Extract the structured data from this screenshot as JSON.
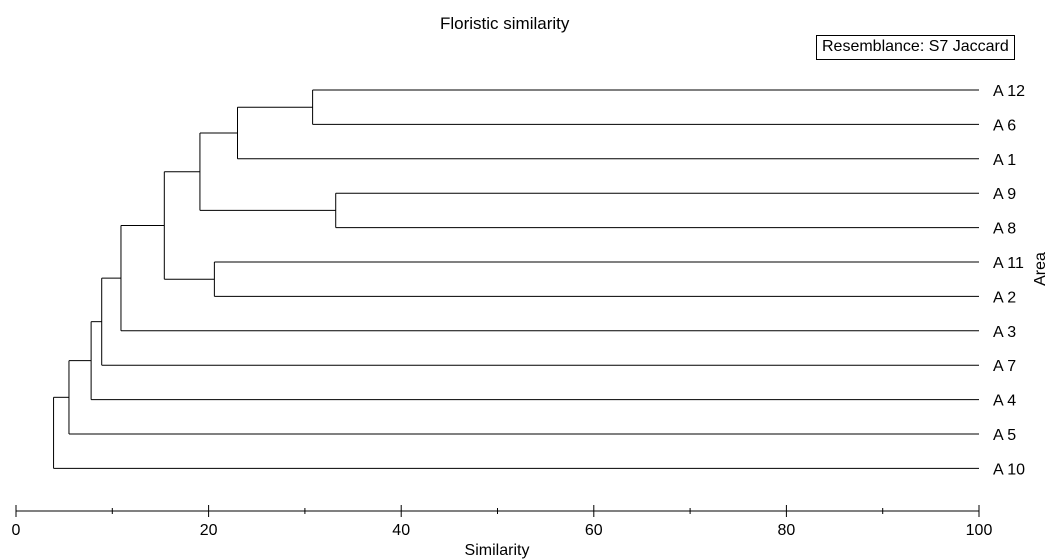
{
  "chart_data": {
    "type": "dendrogram",
    "title": "Floristic similarity",
    "legend": {
      "text": "Resemblance: S7 Jaccard",
      "placement": "top-right"
    },
    "xlabel": "Similarity",
    "ylabel": "Area",
    "xlim": [
      0,
      100
    ],
    "xticks": [
      0,
      20,
      40,
      60,
      80,
      100
    ],
    "leaves": [
      "A 12",
      "A 6",
      "A 1",
      "A 9",
      "A 8",
      "A 11",
      "A 2",
      "A 3",
      "A 7",
      "A 4",
      "A 5",
      "A 10"
    ],
    "merges": [
      {
        "left": "A 12",
        "right": "A 6",
        "similarity": 30.8
      },
      {
        "left": "A 9",
        "right": "A 8",
        "similarity": 33.2
      },
      {
        "left": "A 11",
        "right": "A 2",
        "similarity": 20.6
      },
      {
        "left": "(A 12, A 6)",
        "right": "A 1",
        "similarity": 23.0
      },
      {
        "left": "(A 12, A 6, A 1)",
        "right": "(A 9, A 8)",
        "similarity": 19.1
      },
      {
        "left": "(A 12, A 6, A 1, A 9, A 8)",
        "right": "(A 11, A 2)",
        "similarity": 15.4
      },
      {
        "left": "(A 12 ... A 2)",
        "right": "A 3",
        "similarity": 10.9
      },
      {
        "left": "(A 12 ... A 3)",
        "right": "A 7",
        "similarity": 8.9
      },
      {
        "left": "(A 12 ... A 7)",
        "right": "A 4",
        "similarity": 7.8
      },
      {
        "left": "(A 12 ... A 4)",
        "right": "A 5",
        "similarity": 5.5
      },
      {
        "left": "(A 12 ... A 5)",
        "right": "A 10",
        "similarity": 3.9
      }
    ],
    "grid": false
  }
}
